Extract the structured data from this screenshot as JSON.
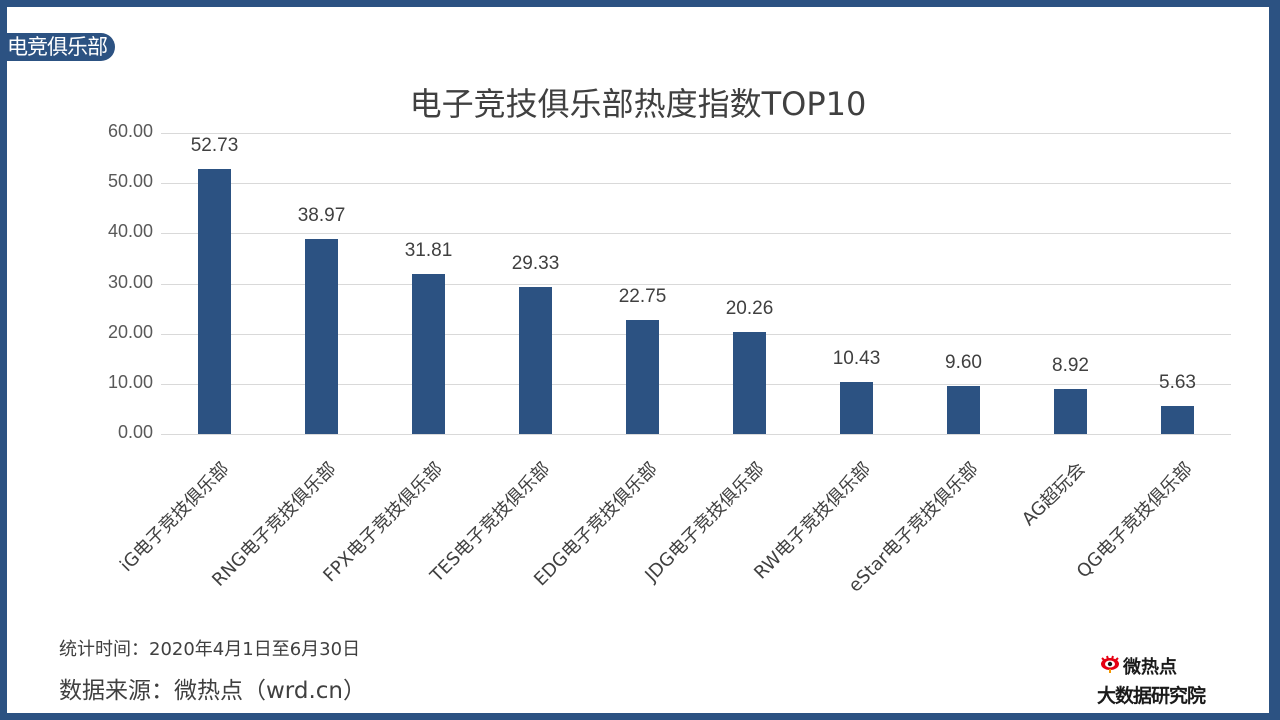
{
  "tag": "电竞俱乐部",
  "title": "电子竞技俱乐部热度指数TOP10",
  "footer": {
    "period": "统计时间：2020年4月1日至6月30日",
    "source": "数据来源：微热点（wrd.cn）"
  },
  "logo": {
    "line1": "微热点",
    "line2": "大数据研究院",
    "icon": "weibo-eye-icon"
  },
  "colors": {
    "bar": "#2c5282",
    "frame": "#2c5282",
    "grid": "#d9d9d9",
    "text": "#404040"
  },
  "yticks": [
    "60.00",
    "50.00",
    "40.00",
    "30.00",
    "20.00",
    "10.00",
    "0.00"
  ],
  "bars": [
    {
      "label": "iG电子竞技俱乐部",
      "value": "52.73"
    },
    {
      "label": "RNG电子竞技俱乐部",
      "value": "38.97"
    },
    {
      "label": "FPX电子竞技俱乐部",
      "value": "31.81"
    },
    {
      "label": "TES电子竞技俱乐部",
      "value": "29.33"
    },
    {
      "label": "EDG电子竞技俱乐部",
      "value": "22.75"
    },
    {
      "label": "JDG电子竞技俱乐部",
      "value": "20.26"
    },
    {
      "label": "RW电子竞技俱乐部",
      "value": "10.43"
    },
    {
      "label": "eStar电子竞技俱乐部",
      "value": "9.60"
    },
    {
      "label": "AG超玩会",
      "value": "8.92"
    },
    {
      "label": "QG电子竞技俱乐部",
      "value": "5.63"
    }
  ],
  "chart_data": {
    "type": "bar",
    "title": "电子竞技俱乐部热度指数TOP10",
    "categories": [
      "iG电子竞技俱乐部",
      "RNG电子竞技俱乐部",
      "FPX电子竞技俱乐部",
      "TES电子竞技俱乐部",
      "EDG电子竞技俱乐部",
      "JDG电子竞技俱乐部",
      "RW电子竞技俱乐部",
      "eStar电子竞技俱乐部",
      "AG超玩会",
      "QG电子竞技俱乐部"
    ],
    "values": [
      52.73,
      38.97,
      31.81,
      29.33,
      22.75,
      20.26,
      10.43,
      9.6,
      8.92,
      5.63
    ],
    "xlabel": "",
    "ylabel": "",
    "ylim": [
      0,
      60
    ],
    "yticks": [
      0,
      10,
      20,
      30,
      40,
      50,
      60
    ],
    "grid": true,
    "data_labels": true,
    "legend": "none"
  }
}
